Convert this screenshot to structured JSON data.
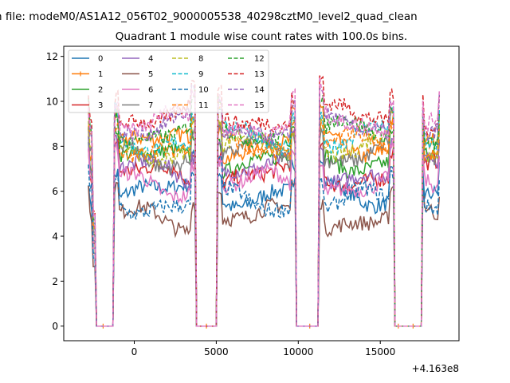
{
  "chart_data": {
    "type": "line",
    "suptitle": "n file: modeM0/AS1A12_056T02_9000005538_40298cztM0_level2_quad_clean",
    "title": "Quadrant 1 module wise count rates with 100.0s bins.",
    "xlabel": "",
    "ylabel": "",
    "x_offset_label": "+4.163e8",
    "xlim": [
      -4300,
      19800
    ],
    "ylim": [
      -0.65,
      12.45
    ],
    "x_ticks": [
      0,
      5000,
      10000,
      15000
    ],
    "x_tick_labels": [
      "0",
      "5000",
      "10000",
      "15000"
    ],
    "y_ticks": [
      0,
      2,
      4,
      6,
      8,
      10,
      12
    ],
    "y_tick_labels": [
      "0",
      "2",
      "4",
      "6",
      "8",
      "10",
      "12"
    ],
    "grid": false,
    "legend_position": "top-left",
    "legend_columns": 4,
    "segments": [
      {
        "on": [
          -2800,
          -2400
        ],
        "off_end": -1200
      },
      {
        "on": [
          -1200,
          3700
        ],
        "off_end": 5100
      },
      {
        "on": [
          5100,
          9800
        ],
        "off_end": 11300
      },
      {
        "on": [
          11300,
          15800
        ],
        "off_end": 17600
      },
      {
        "on": [
          17600,
          18600
        ],
        "off_end": null
      }
    ],
    "series": [
      {
        "name": "0",
        "color": "#1f77b4",
        "dash": false,
        "marker": false,
        "level": 5.9
      },
      {
        "name": "1",
        "color": "#ff7f0e",
        "dash": false,
        "marker": true,
        "level": 8.1
      },
      {
        "name": "2",
        "color": "#2ca02c",
        "dash": false,
        "marker": false,
        "level": 7.4
      },
      {
        "name": "3",
        "color": "#d62728",
        "dash": false,
        "marker": false,
        "level": 6.7
      },
      {
        "name": "4",
        "color": "#9467bd",
        "dash": false,
        "marker": false,
        "level": 6.9
      },
      {
        "name": "5",
        "color": "#8c564b",
        "dash": false,
        "marker": false,
        "level": 4.8
      },
      {
        "name": "6",
        "color": "#e377c2",
        "dash": false,
        "marker": false,
        "level": 6.3
      },
      {
        "name": "7",
        "color": "#7f7f7f",
        "dash": false,
        "marker": false,
        "level": 7.6
      },
      {
        "name": "8",
        "color": "#bcbd22",
        "dash": true,
        "marker": false,
        "level": 7.9
      },
      {
        "name": "9",
        "color": "#17becf",
        "dash": true,
        "marker": false,
        "level": 8.3
      },
      {
        "name": "10",
        "color": "#1f77b4",
        "dash": true,
        "marker": false,
        "level": 5.5
      },
      {
        "name": "11",
        "color": "#ff7f0e",
        "dash": true,
        "marker": false,
        "level": 8.0
      },
      {
        "name": "12",
        "color": "#2ca02c",
        "dash": true,
        "marker": false,
        "level": 8.6
      },
      {
        "name": "13",
        "color": "#d62728",
        "dash": true,
        "marker": false,
        "level": 9.3
      },
      {
        "name": "14",
        "color": "#9467bd",
        "dash": true,
        "marker": false,
        "level": 8.8
      },
      {
        "name": "15",
        "color": "#e377c2",
        "dash": true,
        "marker": false,
        "level": 9.0
      }
    ]
  }
}
